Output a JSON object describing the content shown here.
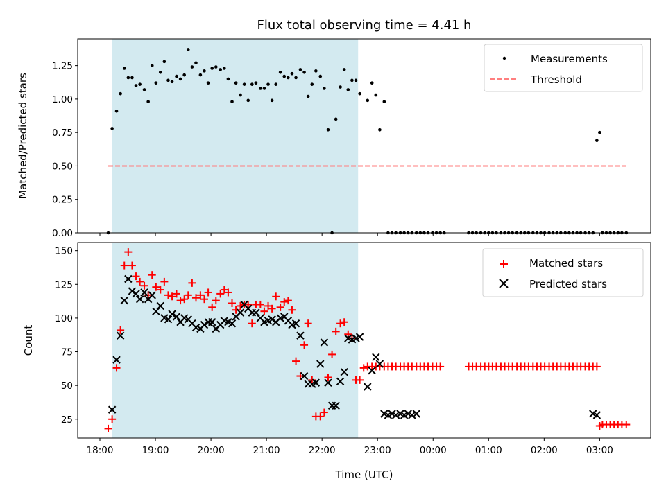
{
  "chart_data": [
    {
      "type": "scatter",
      "title": "Flux total observing time = 4.41 h",
      "xlabel": "",
      "ylabel": "Matched/Predicted stars",
      "ylim": [
        0,
        1.45
      ],
      "yticks": [
        0.0,
        0.25,
        0.5,
        0.75,
        1.0,
        1.25
      ],
      "ytick_labels": [
        "0.00",
        "0.25",
        "0.50",
        "0.75",
        "1.00",
        "1.25"
      ],
      "xlim": [
        17.6,
        27.92
      ],
      "shaded_span": [
        18.22,
        22.65
      ],
      "shade_color": "#d3eaf0",
      "legend_position": "upper right",
      "series": [
        {
          "name": "Measurements",
          "marker": "dot",
          "color": "#000000",
          "x": [
            18.15,
            18.22,
            18.3,
            18.37,
            18.44,
            18.51,
            18.58,
            18.65,
            18.72,
            18.8,
            18.87,
            18.94,
            19.01,
            19.09,
            19.16,
            19.23,
            19.3,
            19.38,
            19.45,
            19.52,
            19.59,
            19.66,
            19.73,
            19.81,
            19.88,
            19.95,
            20.02,
            20.09,
            20.17,
            20.24,
            20.31,
            20.38,
            20.45,
            20.53,
            20.6,
            20.67,
            20.74,
            20.81,
            20.89,
            20.96,
            21.03,
            21.1,
            21.17,
            21.25,
            21.32,
            21.39,
            21.46,
            21.53,
            21.61,
            21.68,
            21.75,
            21.82,
            21.89,
            21.97,
            22.04,
            22.11,
            22.18,
            22.25,
            22.33,
            22.4,
            22.47,
            22.54,
            22.61,
            22.68,
            22.82,
            22.9,
            22.97,
            23.04,
            23.12,
            23.19,
            23.26,
            23.33,
            23.41,
            23.48,
            23.55,
            23.62,
            23.7,
            23.77,
            23.84,
            23.91,
            23.99,
            24.06,
            24.13,
            24.2,
            24.64,
            24.71,
            24.78,
            24.86,
            24.93,
            25.0,
            25.07,
            25.14,
            25.22,
            25.29,
            25.36,
            25.43,
            25.51,
            25.58,
            25.65,
            25.72,
            25.8,
            25.87,
            25.94,
            26.01,
            26.09,
            26.16,
            26.23,
            26.3,
            26.38,
            26.45,
            26.52,
            26.59,
            26.66,
            26.74,
            26.81,
            26.88,
            26.95,
            27.0,
            27.05,
            27.12,
            27.19,
            27.26,
            27.33,
            27.4,
            27.48
          ],
          "y": [
            0.0,
            0.78,
            0.91,
            1.04,
            1.23,
            1.16,
            1.16,
            1.1,
            1.11,
            1.07,
            0.98,
            1.25,
            1.12,
            1.2,
            1.28,
            1.14,
            1.13,
            1.17,
            1.15,
            1.18,
            1.37,
            1.24,
            1.27,
            1.18,
            1.21,
            1.12,
            1.23,
            1.24,
            1.22,
            1.23,
            1.15,
            0.98,
            1.12,
            1.03,
            1.11,
            0.99,
            1.11,
            1.12,
            1.08,
            1.08,
            1.11,
            0.99,
            1.11,
            1.2,
            1.17,
            1.16,
            1.19,
            1.16,
            1.22,
            1.2,
            1.02,
            1.11,
            1.21,
            1.17,
            1.08,
            0.77,
            0.0,
            0.85,
            1.09,
            1.22,
            1.07,
            1.14,
            1.14,
            1.04,
            0.99,
            1.12,
            1.03,
            0.77,
            0.98,
            0.0,
            0.0,
            0.0,
            0.0,
            0.0,
            0.0,
            0.0,
            0.0,
            0.0,
            0.0,
            0.0,
            0.0,
            0.0,
            0.0,
            0.0,
            0.0,
            0.0,
            0.0,
            0.0,
            0.0,
            0.0,
            0.0,
            0.0,
            0.0,
            0.0,
            0.0,
            0.0,
            0.0,
            0.0,
            0.0,
            0.0,
            0.0,
            0.0,
            0.0,
            0.0,
            0.0,
            0.0,
            0.0,
            0.0,
            0.0,
            0.0,
            0.0,
            0.0,
            0.0,
            0.0,
            0.0,
            0.0,
            0.69,
            0.75,
            0.0,
            0.0,
            0.0,
            0.0,
            0.0,
            0.0,
            0.0
          ]
        },
        {
          "name": "Threshold",
          "marker": "dashed-line",
          "color": "#ff7f7f",
          "x": [
            18.15,
            27.48
          ],
          "y": [
            0.5,
            0.5
          ]
        }
      ]
    },
    {
      "type": "scatter",
      "title": "",
      "xlabel": "Time (UTC)",
      "ylabel": "Count",
      "ylim": [
        11,
        156
      ],
      "yticks": [
        25,
        50,
        75,
        100,
        125,
        150
      ],
      "ytick_labels": [
        "25",
        "50",
        "75",
        "100",
        "125",
        "150"
      ],
      "xlim": [
        17.6,
        27.92
      ],
      "xticks": [
        18,
        19,
        20,
        21,
        22,
        23,
        24,
        25,
        26,
        27
      ],
      "xtick_labels": [
        "18:00",
        "19:00",
        "20:00",
        "21:00",
        "22:00",
        "23:00",
        "00:00",
        "01:00",
        "02:00",
        "03:00"
      ],
      "shaded_span": [
        18.22,
        22.65
      ],
      "shade_color": "#d3eaf0",
      "legend_position": "upper right",
      "series": [
        {
          "name": "Matched stars",
          "marker": "plus",
          "color": "#ff0000",
          "x": [
            18.15,
            18.22,
            18.3,
            18.37,
            18.44,
            18.51,
            18.58,
            18.65,
            18.72,
            18.8,
            18.87,
            18.94,
            19.01,
            19.09,
            19.16,
            19.23,
            19.3,
            19.38,
            19.45,
            19.52,
            19.59,
            19.66,
            19.73,
            19.81,
            19.88,
            19.95,
            20.02,
            20.09,
            20.17,
            20.24,
            20.31,
            20.38,
            20.45,
            20.53,
            20.6,
            20.67,
            20.74,
            20.81,
            20.89,
            20.96,
            21.03,
            21.1,
            21.17,
            21.25,
            21.32,
            21.39,
            21.46,
            21.53,
            21.61,
            21.68,
            21.75,
            21.82,
            21.89,
            21.97,
            22.04,
            22.11,
            22.18,
            22.25,
            22.33,
            22.4,
            22.47,
            22.54,
            22.61,
            22.68,
            22.75,
            22.82,
            22.9,
            22.97,
            23.04,
            23.12,
            23.19,
            23.26,
            23.33,
            23.41,
            23.48,
            23.55,
            23.62,
            23.7,
            23.77,
            23.84,
            23.91,
            23.99,
            24.06,
            24.13,
            24.64,
            24.71,
            24.78,
            24.86,
            24.93,
            25.0,
            25.07,
            25.14,
            25.22,
            25.29,
            25.36,
            25.43,
            25.51,
            25.58,
            25.65,
            25.72,
            25.8,
            25.87,
            25.94,
            26.01,
            26.09,
            26.16,
            26.23,
            26.3,
            26.38,
            26.45,
            26.52,
            26.59,
            26.66,
            26.74,
            26.81,
            26.88,
            26.95,
            27.0,
            27.05,
            27.12,
            27.19,
            27.26,
            27.33,
            27.4,
            27.48
          ],
          "y": [
            18,
            25,
            63,
            91,
            139,
            149,
            139,
            131,
            127,
            124,
            117,
            132,
            123,
            121,
            127,
            117,
            116,
            118,
            113,
            114,
            117,
            126,
            115,
            117,
            114,
            119,
            108,
            113,
            118,
            121,
            119,
            111,
            106,
            109,
            110,
            110,
            96,
            110,
            110,
            105,
            109,
            107,
            116,
            108,
            112,
            113,
            106,
            68,
            57,
            80,
            96,
            54,
            27,
            27,
            30,
            56,
            73,
            90,
            96,
            97,
            88,
            85,
            54,
            54,
            63,
            64,
            64,
            64,
            64,
            64,
            64,
            64,
            64,
            64,
            64,
            64,
            64,
            64,
            64,
            64,
            64,
            64,
            64,
            64,
            64,
            64,
            64,
            64,
            64,
            64,
            64,
            64,
            64,
            64,
            64,
            64,
            64,
            64,
            64,
            64,
            64,
            64,
            64,
            64,
            64,
            64,
            64,
            64,
            64,
            64,
            64,
            64,
            64,
            64,
            64,
            64,
            64,
            20,
            21,
            21,
            21,
            21,
            21,
            21,
            21
          ]
        },
        {
          "name": "Predicted stars",
          "marker": "x",
          "color": "#000000",
          "x": [
            18.22,
            18.3,
            18.37,
            18.44,
            18.51,
            18.58,
            18.65,
            18.72,
            18.8,
            18.87,
            18.94,
            19.01,
            19.09,
            19.16,
            19.23,
            19.3,
            19.38,
            19.45,
            19.52,
            19.59,
            19.66,
            19.73,
            19.81,
            19.88,
            19.95,
            20.02,
            20.09,
            20.17,
            20.24,
            20.31,
            20.38,
            20.45,
            20.53,
            20.6,
            20.67,
            20.74,
            20.81,
            20.89,
            20.96,
            21.03,
            21.1,
            21.17,
            21.25,
            21.32,
            21.39,
            21.46,
            21.53,
            21.61,
            21.68,
            21.75,
            21.82,
            21.89,
            21.97,
            22.04,
            22.11,
            22.18,
            22.25,
            22.33,
            22.4,
            22.47,
            22.54,
            22.61,
            22.68,
            22.82,
            22.9,
            22.97,
            23.04,
            23.12,
            23.19,
            23.26,
            23.33,
            23.41,
            23.48,
            23.55,
            23.62,
            23.7,
            26.88,
            26.95
          ],
          "y": [
            32,
            69,
            87,
            113,
            129,
            120,
            118,
            114,
            119,
            114,
            117,
            105,
            109,
            100,
            99,
            103,
            101,
            97,
            100,
            99,
            96,
            93,
            92,
            95,
            97,
            97,
            92,
            95,
            98,
            97,
            96,
            101,
            104,
            110,
            107,
            104,
            104,
            100,
            97,
            98,
            99,
            97,
            100,
            101,
            98,
            95,
            96,
            87,
            57,
            51,
            51,
            52,
            66,
            82,
            52,
            35,
            35,
            53,
            60,
            85,
            84,
            85,
            86,
            49,
            61,
            71,
            66,
            29,
            28,
            29,
            28,
            29,
            28,
            29,
            28,
            29,
            29,
            28
          ]
        }
      ]
    }
  ]
}
